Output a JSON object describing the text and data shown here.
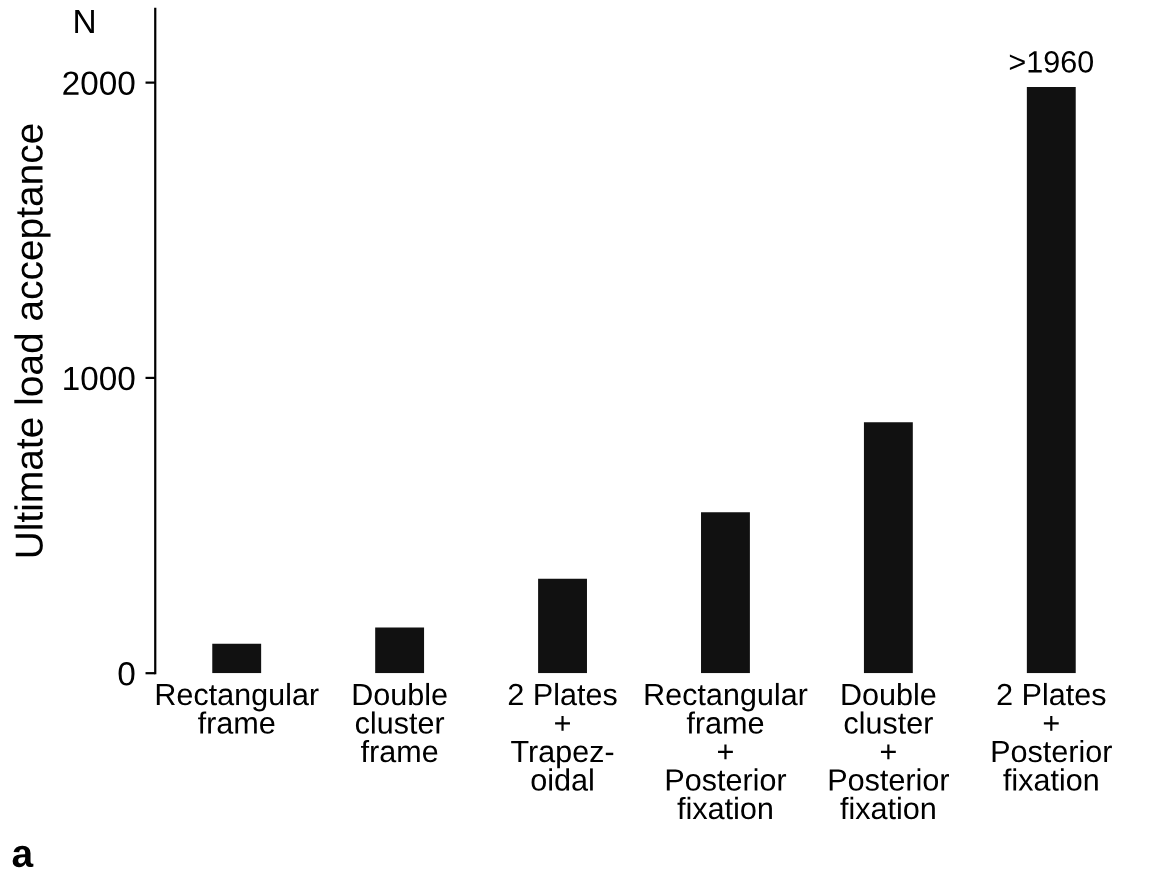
{
  "chart_data": {
    "type": "bar",
    "ylabel": "Ultimate load acceptance",
    "categories": [
      "Rectangular\nframe",
      "Double\ncluster\nframe",
      "2 Plates\n+\nTrapez-\noidal",
      "Rectangular\nframe\n+\nPosterior\nfixation",
      "Double\ncluster\n+\nPosterior\nfixation",
      "2 Plates\n+\nPosterior\nfixation"
    ],
    "values": [
      100,
      155,
      320,
      545,
      850,
      1985
    ],
    "value_labels": [
      null,
      null,
      null,
      null,
      null,
      ">1960"
    ],
    "color": "#111111",
    "ylim": [
      0,
      2250
    ],
    "yticks": [
      0,
      1000,
      2000
    ],
    "annotations": [
      "N",
      "a"
    ],
    "grid": false,
    "legend": false
  }
}
